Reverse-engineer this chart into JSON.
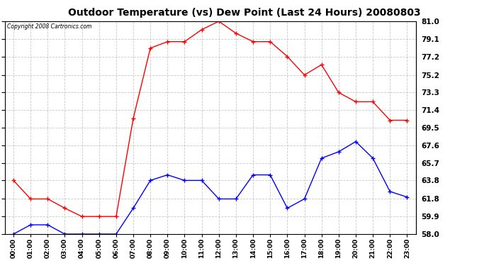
{
  "title": "Outdoor Temperature (vs) Dew Point (Last 24 Hours) 20080803",
  "copyright": "Copyright 2008 Cartronics.com",
  "hours": [
    "00:00",
    "01:00",
    "02:00",
    "03:00",
    "04:00",
    "05:00",
    "06:00",
    "07:00",
    "08:00",
    "09:00",
    "10:00",
    "11:00",
    "12:00",
    "13:00",
    "14:00",
    "15:00",
    "16:00",
    "17:00",
    "18:00",
    "19:00",
    "20:00",
    "21:00",
    "22:00",
    "23:00"
  ],
  "temp": [
    63.8,
    61.8,
    61.8,
    60.8,
    59.9,
    59.9,
    59.9,
    70.5,
    78.1,
    78.8,
    78.8,
    80.1,
    81.0,
    79.7,
    78.8,
    78.8,
    77.2,
    75.2,
    76.3,
    73.3,
    72.3,
    72.3,
    70.3,
    70.3
  ],
  "dew": [
    58.0,
    59.0,
    59.0,
    58.0,
    58.0,
    58.0,
    58.0,
    60.8,
    63.8,
    64.4,
    63.8,
    63.8,
    61.8,
    61.8,
    64.4,
    64.4,
    60.8,
    61.8,
    66.2,
    66.9,
    68.0,
    66.2,
    62.6,
    62.0
  ],
  "temp_color": "#ff0000",
  "dew_color": "#0000ff",
  "bg_color": "#ffffff",
  "plot_bg_color": "#ffffff",
  "grid_color": "#bbbbbb",
  "ymin": 58.0,
  "ymax": 81.0,
  "yticks": [
    58.0,
    59.9,
    61.8,
    63.8,
    65.7,
    67.6,
    69.5,
    71.4,
    73.3,
    75.2,
    77.2,
    79.1,
    81.0
  ]
}
